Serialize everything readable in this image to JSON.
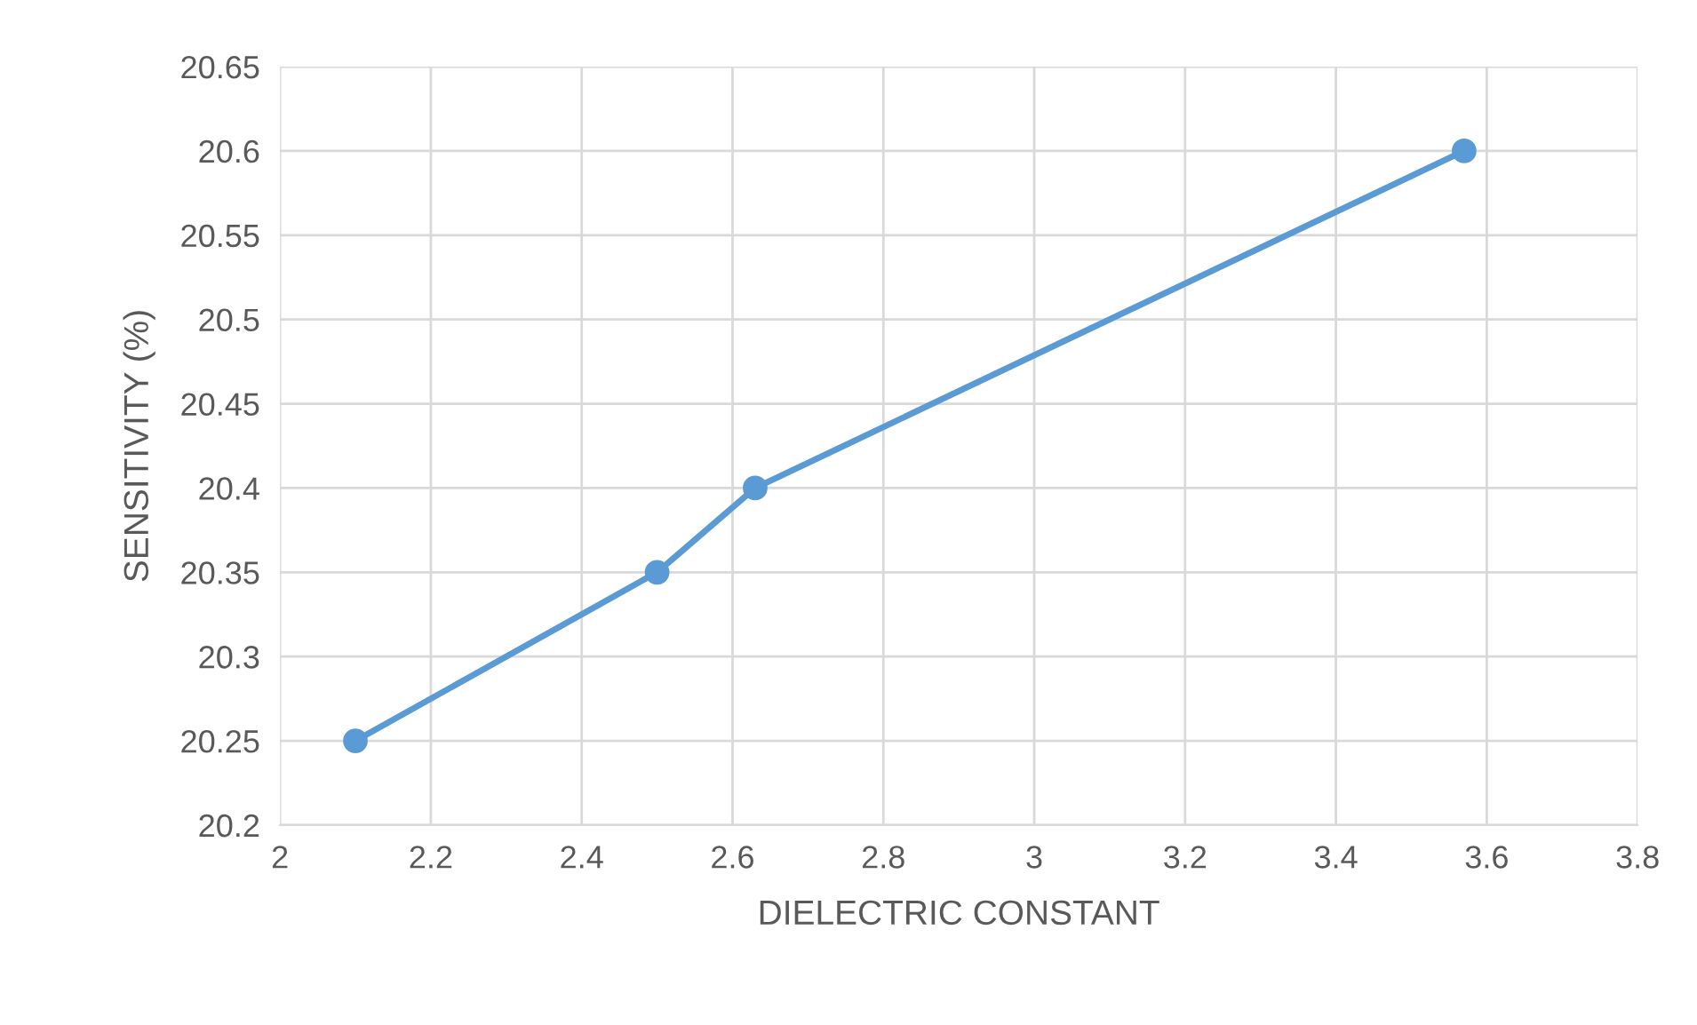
{
  "chart_data": {
    "type": "line",
    "xlabel": "DIELECTRIC CONSTANT",
    "ylabel": "SENSITIVITY (%)",
    "series": [
      {
        "color": "#5b9bd5",
        "x": [
          2.1,
          2.5,
          2.63,
          3.57
        ],
        "values": [
          20.25,
          20.35,
          20.4,
          20.6
        ]
      }
    ],
    "xlim": [
      2,
      3.8
    ],
    "xticks": [
      2,
      2.2,
      2.4,
      2.6,
      2.8,
      3,
      3.2,
      3.4,
      3.6,
      3.8
    ],
    "ylim": [
      20.2,
      20.65
    ],
    "yticks": [
      20.2,
      20.25,
      20.3,
      20.35,
      20.4,
      20.45,
      20.5,
      20.55,
      20.6,
      20.65
    ],
    "grid": true,
    "marker": "circle",
    "line_style": "solid"
  }
}
